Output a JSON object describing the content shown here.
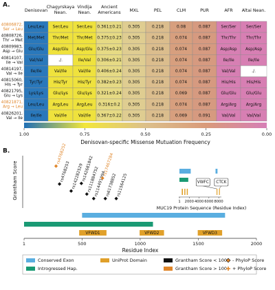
{
  "panel_a": {
    "label": "A.",
    "columns": [
      {
        "lines": [
          "Denisovan"
        ]
      },
      {
        "lines": [
          "Chagyrskaya",
          "Nean."
        ]
      },
      {
        "lines": [
          "Vindija",
          "Nean."
        ]
      },
      {
        "lines": [
          "Ancient",
          "Americans"
        ]
      },
      {
        "lines": [
          "MXL"
        ]
      },
      {
        "lines": [
          "PEL"
        ]
      },
      {
        "lines": [
          "CLM"
        ]
      },
      {
        "lines": [
          "PUR"
        ]
      },
      {
        "lines": [
          "AFR"
        ]
      },
      {
        "lines": [
          "Altai Nean."
        ]
      }
    ],
    "rows": [
      {
        "id": "40806872,",
        "change": "Ser → Leu",
        "color": "#e0862a",
        "cells": [
          "Leu/Leu",
          "Ser/Leu",
          "Ser/Leu",
          "0.361±0.21",
          0.305,
          0.218,
          0.08,
          0.087,
          "Ser/Ser",
          "Ser/Ser"
        ],
        "colors": [
          "#2a78bb",
          "#efe23d",
          "#efe23d",
          "#e6da84",
          "#dfcd91",
          "#dbbd8d",
          "#d79f7e",
          "#d69a80",
          "#d77fb3",
          "#d77fb3"
        ]
      },
      {
        "id": "40808726,",
        "change": "Thr → Met",
        "color": "#111111",
        "cells": [
          "Met/Met",
          "Thr/Met",
          "Thr/Met",
          "0.375±0.23",
          0.305,
          0.218,
          0.074,
          0.087,
          "Thr/Thr",
          "Thr/Thr"
        ],
        "colors": [
          "#2a78bb",
          "#efe23d",
          "#efe23d",
          "#e6da84",
          "#dfcd91",
          "#dbbd8d",
          "#d79f7e",
          "#d69a80",
          "#d77fb3",
          "#d77fb3"
        ]
      },
      {
        "id": "40809983,",
        "change": "Asp → Glu",
        "color": "#111111",
        "cells": [
          "Glu/Glu",
          "Asp/Glu",
          "Asp/Glu",
          "0.375±0.23",
          0.305,
          0.218,
          0.074,
          0.087,
          "Asp/Asp",
          "Asp/Asp"
        ],
        "colors": [
          "#2a78bb",
          "#efe23d",
          "#efe23d",
          "#e6da84",
          "#dfcd91",
          "#dbbd8d",
          "#d79f7e",
          "#d69a80",
          "#d77fb3",
          "#d77fb3"
        ]
      },
      {
        "id": "40814107,",
        "change": "Ile → Val",
        "color": "#111111",
        "cells": [
          "Val/Val",
          "./.",
          "Ile/Val",
          "0.306±0.21",
          0.305,
          0.218,
          0.074,
          0.087,
          "Ile/Ile",
          "Ile/Ile"
        ],
        "colors": [
          "#2a78bb",
          "#ffffff",
          "#efe23d",
          "#e6da84",
          "#dfcd91",
          "#dbbd8d",
          "#d79f7e",
          "#d69a80",
          "#d77fb3",
          "#d77fb3"
        ]
      },
      {
        "id": "40814197,",
        "change": "Val → Ile",
        "color": "#111111",
        "cells": [
          "Ile/Ile",
          "Val/Ile",
          "Val/Ile",
          "0.406±0.24",
          0.305,
          0.218,
          0.074,
          0.087,
          "Val/Val",
          "./."
        ],
        "colors": [
          "#2a78bb",
          "#efe23d",
          "#efe23d",
          "#e6da84",
          "#dfcd91",
          "#dbbd8d",
          "#d79f7e",
          "#d69a80",
          "#d77fb3",
          "#ffffff"
        ]
      },
      {
        "id": "40815060,",
        "change": "His → Tyr",
        "color": "#111111",
        "cells": [
          "Tyr/Tyr",
          "His/Tyr",
          "His/Tyr",
          "0.382±0.23",
          0.305,
          0.218,
          0.074,
          0.087,
          "His/His",
          "His/His"
        ],
        "colors": [
          "#2a78bb",
          "#efe23d",
          "#efe23d",
          "#e6da84",
          "#dfcd91",
          "#dbbd8d",
          "#d79f7e",
          "#d69a80",
          "#d77fb3",
          "#d77fb3"
        ]
      },
      {
        "id": "40821795,",
        "change": "Glu → Lys",
        "color": "#111111",
        "cells": [
          "Lys/Lys",
          "Glu/Lys",
          "Glu/Lys",
          "0.321±0.24",
          0.305,
          0.218,
          0.069,
          0.087,
          "Glu/Glu",
          "Glu/Glu"
        ],
        "colors": [
          "#2a78bb",
          "#efe23d",
          "#efe23d",
          "#e6da84",
          "#dfcd91",
          "#dbbd8d",
          "#d79f7e",
          "#d69a80",
          "#d77fb3",
          "#d77fb3"
        ]
      },
      {
        "id": "40821871,",
        "change": "Arg → Leu",
        "color": "#e0862a",
        "cells": [
          "Leu/Leu",
          "Arg/Leu",
          "Arg/Leu",
          "0.316±0.2",
          0.305,
          0.218,
          0.074,
          0.087,
          "Arg/Arg",
          "Arg/Arg"
        ],
        "colors": [
          "#2a78bb",
          "#efe23d",
          "#efe23d",
          "#e6da84",
          "#dfcd91",
          "#dbbd8d",
          "#d79f7e",
          "#d69a80",
          "#d77fb3",
          "#d77fb3"
        ]
      },
      {
        "id": "40826201,",
        "change": "Val → Ile",
        "color": "#111111",
        "cells": [
          "Ile/Ile",
          "Val/Ile",
          "Val/Ile",
          "0.367±0.22",
          0.305,
          0.218,
          0.069,
          0.091,
          "Val/Val",
          "Val/Val"
        ],
        "colors": [
          "#2a78bb",
          "#efe23d",
          "#efe23d",
          "#e6da84",
          "#dfcd91",
          "#dbbd8d",
          "#d79f7e",
          "#d69a80",
          "#d77fb3",
          "#d77fb3"
        ]
      }
    ]
  },
  "chart_data": [
    {
      "type": "colorbar",
      "title": "Denisovan-specific Missense Mutuation Frequency",
      "xlim": [
        1,
        0
      ],
      "xticks": [
        {
          "value": 1,
          "label": "1.00"
        },
        {
          "value": 0.75,
          "label": "0.75"
        },
        {
          "value": 0.5,
          "label": "0.50"
        },
        {
          "value": 0.25,
          "label": "0.25"
        },
        {
          "value": 0,
          "label": "0.00"
        }
      ],
      "colors": [
        "#1f6fb6",
        "#f2e63a",
        "#dcc08b",
        "#d99a7a",
        "#d67fb6"
      ]
    },
    {
      "type": "scatter",
      "panel": "B.",
      "ylabel": "Grantham Score",
      "xlabel": "Residue Index",
      "xlim": [
        1,
        2000
      ],
      "xticks": [
        1,
        500,
        1000,
        1500,
        2000
      ],
      "ylim": [
        0,
        160
      ],
      "series": [
        {
          "name": "Grantham Score < 100",
          "color": "#111111",
          "x": [
            306,
            406,
            494,
            541,
            600,
            700,
            794
          ],
          "values": [
            81,
            56,
            83,
            45,
            29,
            29,
            29
          ],
          "labels": [
            "rs4768253",
            "rs142282529",
            "rs142681842",
            "rs111884752",
            "rs114491994",
            "rs61738852",
            "rs11564125"
          ]
        },
        {
          "name": "Grantham Score > 100",
          "color": "#e0862a",
          "x": [
            276,
            676
          ],
          "values": [
            145,
            102
          ],
          "labels": [
            "rs4768252",
            "rs17467284"
          ]
        }
      ],
      "segments": [
        {
          "name": "Conserved Exon",
          "color": "#5aaee0",
          "start": 500,
          "end": 1730
        },
        {
          "name": "Introgressed Hap.",
          "color": "#1a9a74",
          "start": 1,
          "end": 1110
        }
      ],
      "domains": {
        "name": "UniProt Domain",
        "color": "#e0a02a",
        "items": [
          {
            "label": "VFWD1",
            "start": 475,
            "end": 710
          },
          {
            "label": "VFWD2",
            "start": 995,
            "end": 1205
          },
          {
            "label": "VFWD3",
            "start": 1495,
            "end": 1705
          }
        ]
      },
      "legend_extra": [
        "- PhyloP Score",
        "+ PhyloP Score"
      ]
    },
    {
      "type": "inset",
      "xlabel": "MUC19 Protein Sequence (Residue Index)",
      "xlim": [
        1,
        8400
      ],
      "xticks": [
        1,
        2000,
        4000,
        6000,
        8000
      ],
      "tracks": [
        {
          "color": "#5aaee0",
          "spans": [
            [
              1,
              2300
            ],
            [
              7350,
              7750
            ]
          ]
        },
        {
          "color": "#1a9a74",
          "spans": [
            [
              1,
              1800
            ]
          ]
        },
        {
          "color": "#e0a02a",
          "spans": [
            [
              475,
              710
            ],
            [
              995,
              1205
            ],
            [
              1495,
              1705
            ],
            [
              7560,
              7640
            ],
            [
              8060,
              8140
            ]
          ]
        }
      ],
      "callouts": [
        {
          "label": "VWFC",
          "x": 7600
        },
        {
          "label": "CTCK",
          "x": 8100
        }
      ]
    }
  ]
}
